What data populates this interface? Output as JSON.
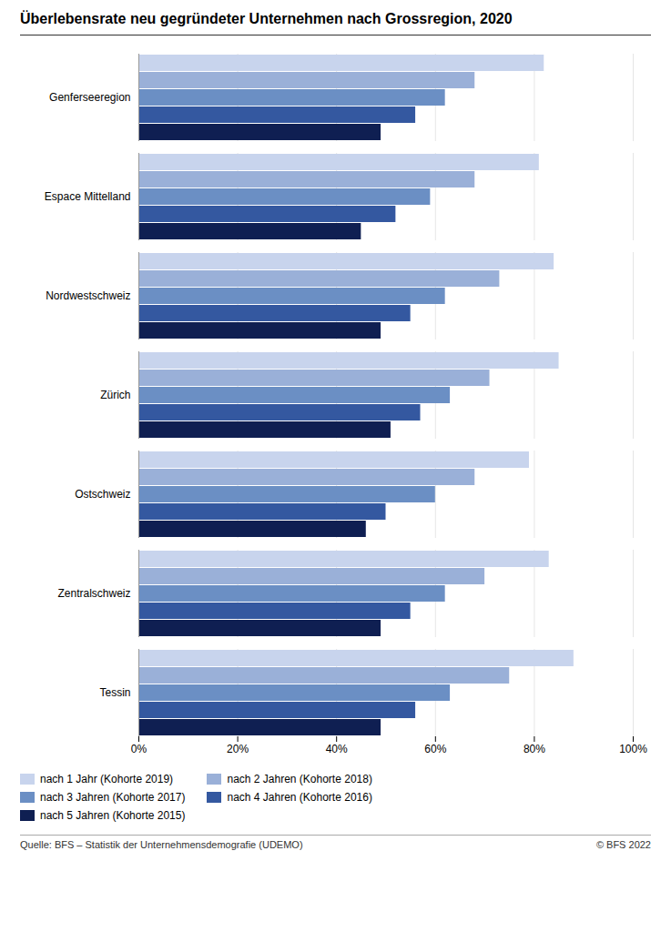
{
  "chart_data": {
    "type": "bar",
    "orientation": "horizontal",
    "title": "Überlebensrate neu gegründeter Unternehmen nach Grossregion, 2020",
    "categories": [
      "Genferseeregion",
      "Espace Mittelland",
      "Nordwestschweiz",
      "Zürich",
      "Ostschweiz",
      "Zentralschweiz",
      "Tessin"
    ],
    "series": [
      {
        "name": "nach 1 Jahr (Kohorte 2019)",
        "color": "#c8d4ed",
        "values": [
          82,
          81,
          84,
          85,
          79,
          83,
          88
        ]
      },
      {
        "name": "nach 2 Jahren (Kohorte 2018)",
        "color": "#9ab0d8",
        "values": [
          68,
          68,
          73,
          71,
          68,
          70,
          75
        ]
      },
      {
        "name": "nach 3 Jahren (Kohorte 2017)",
        "color": "#6b8fc4",
        "values": [
          62,
          59,
          62,
          63,
          60,
          62,
          63
        ]
      },
      {
        "name": "nach 4 Jahren (Kohorte 2016)",
        "color": "#3458a0",
        "values": [
          56,
          52,
          55,
          57,
          50,
          55,
          56
        ]
      },
      {
        "name": "nach 5 Jahren (Kohorte 2015)",
        "color": "#0f1f52",
        "values": [
          49,
          45,
          49,
          51,
          46,
          49,
          49
        ]
      }
    ],
    "xlim": [
      0,
      100
    ],
    "xticks": [
      {
        "value": 0,
        "label": "0%"
      },
      {
        "value": 20,
        "label": "20%"
      },
      {
        "value": 40,
        "label": "40%"
      },
      {
        "value": 60,
        "label": "60%"
      },
      {
        "value": 80,
        "label": "80%"
      },
      {
        "value": 100,
        "label": "100%"
      }
    ],
    "grid": true,
    "legend": "bottom",
    "annotations": [
      "Quelle: BFS – Statistik der Unternehmensdemografie (UDEMO)",
      "© BFS 2022"
    ]
  }
}
